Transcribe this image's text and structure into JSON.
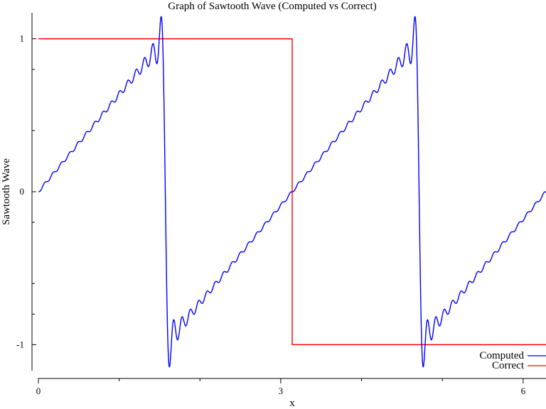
{
  "chart_data": {
    "type": "line",
    "title": "Graph of Sawtooth Wave (Computed vs Correct)",
    "xlabel": "x",
    "ylabel": "Sawtooth Wave",
    "xlim": [
      0,
      6.283185
    ],
    "ylim": [
      -1.17,
      1.17
    ],
    "x_ticks": [
      {
        "value": 0,
        "label": "0"
      },
      {
        "value": 3,
        "label": "3"
      },
      {
        "value": 6,
        "label": "6"
      }
    ],
    "x_minor_ticks": [
      1,
      2,
      4,
      5
    ],
    "y_ticks": [
      {
        "value": 1,
        "label": "1"
      },
      {
        "value": 0,
        "label": "0"
      },
      {
        "value": -1,
        "label": "-1"
      }
    ],
    "y_minor_ticks": [
      0.8,
      0.4,
      -0.2,
      -0.6,
      -0.8
    ],
    "grid": false,
    "legend_position": "bottom-right",
    "series": [
      {
        "name": "Computed",
        "color": "#0000ff",
        "kind": "fourier_partial_sum",
        "terms": 30,
        "period": 3.141593,
        "amplitude": 1.0,
        "x_range": [
          0,
          6.283185
        ],
        "samples": 1200
      },
      {
        "name": "Correct",
        "color": "#ff0000",
        "kind": "square",
        "x": [
          0,
          3.141593,
          3.141593,
          6.283185
        ],
        "y": [
          1,
          1,
          -1,
          -1
        ]
      }
    ]
  }
}
